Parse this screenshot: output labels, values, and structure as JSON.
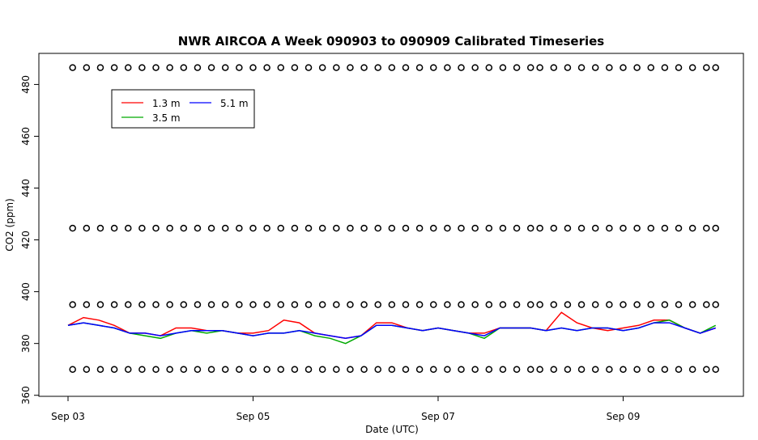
{
  "chart_data": {
    "type": "line",
    "title": "NWR AIRCOA A  Week 090903 to 090909  Calibrated Timeseries",
    "x_label": "Date (UTC)",
    "y_label": "CO2 (ppm)",
    "xlim": [
      -0.315,
      7.3
    ],
    "ylim": [
      359.6,
      492
    ],
    "xticks": [
      {
        "value": 0,
        "label": "Sep 03"
      },
      {
        "value": 2,
        "label": "Sep 05"
      },
      {
        "value": 4,
        "label": "Sep 07"
      },
      {
        "value": 6,
        "label": "Sep 09"
      }
    ],
    "yticks": [
      360,
      380,
      400,
      420,
      440,
      460,
      480
    ],
    "x": [
      0,
      0.167,
      0.333,
      0.5,
      0.667,
      0.833,
      1,
      1.167,
      1.333,
      1.5,
      1.667,
      1.833,
      2,
      2.167,
      2.333,
      2.5,
      2.667,
      2.833,
      3,
      3.167,
      3.333,
      3.5,
      3.667,
      3.833,
      4,
      4.167,
      4.333,
      4.5,
      4.667,
      4.833,
      5,
      5.167,
      5.333,
      5.5,
      5.667,
      5.833,
      6,
      6.167,
      6.333,
      6.5,
      6.667,
      6.833,
      7
    ],
    "series": [
      {
        "name": "1.3 m",
        "color": "#ff0000",
        "values": [
          387,
          390,
          389,
          387,
          384,
          384,
          383,
          386,
          386,
          385,
          385,
          384,
          384,
          385,
          389,
          388,
          384,
          383,
          382,
          383,
          388,
          388,
          386,
          385,
          386,
          385,
          384,
          384,
          386,
          386,
          386,
          385,
          392,
          388,
          386,
          385,
          386,
          387,
          389,
          389,
          386,
          384,
          386
        ]
      },
      {
        "name": "3.5 m",
        "color": "#00aa00",
        "values": [
          387,
          388,
          387,
          386,
          384,
          383,
          382,
          384,
          385,
          384,
          385,
          384,
          383,
          384,
          384,
          385,
          383,
          382,
          380,
          383,
          387,
          387,
          386,
          385,
          386,
          385,
          384,
          382,
          386,
          386,
          386,
          385,
          386,
          385,
          386,
          386,
          385,
          386,
          388,
          389,
          386,
          384,
          387
        ]
      },
      {
        "name": "5.1 m",
        "color": "#0000ff",
        "values": [
          387,
          388,
          387,
          386,
          384,
          384,
          383,
          384,
          385,
          385,
          385,
          384,
          383,
          384,
          384,
          385,
          384,
          383,
          382,
          383,
          387,
          387,
          386,
          385,
          386,
          385,
          384,
          383,
          386,
          386,
          386,
          385,
          386,
          385,
          386,
          386,
          385,
          386,
          388,
          388,
          386,
          384,
          386
        ]
      }
    ],
    "calibration": {
      "x": [
        0.05,
        0.2,
        0.35,
        0.5,
        0.65,
        0.8,
        0.95,
        1.1,
        1.25,
        1.4,
        1.55,
        1.7,
        1.85,
        2,
        2.15,
        2.3,
        2.45,
        2.6,
        2.75,
        2.9,
        3.05,
        3.2,
        3.35,
        3.5,
        3.65,
        3.8,
        3.95,
        4.1,
        4.25,
        4.4,
        4.55,
        4.7,
        4.85,
        5,
        5.1,
        5.25,
        5.4,
        5.55,
        5.7,
        5.85,
        6,
        6.15,
        6.3,
        6.45,
        6.6,
        6.75,
        6.9,
        7
      ],
      "levels": [
        486.5,
        424.5,
        395,
        370
      ]
    },
    "legend": "top-left"
  }
}
